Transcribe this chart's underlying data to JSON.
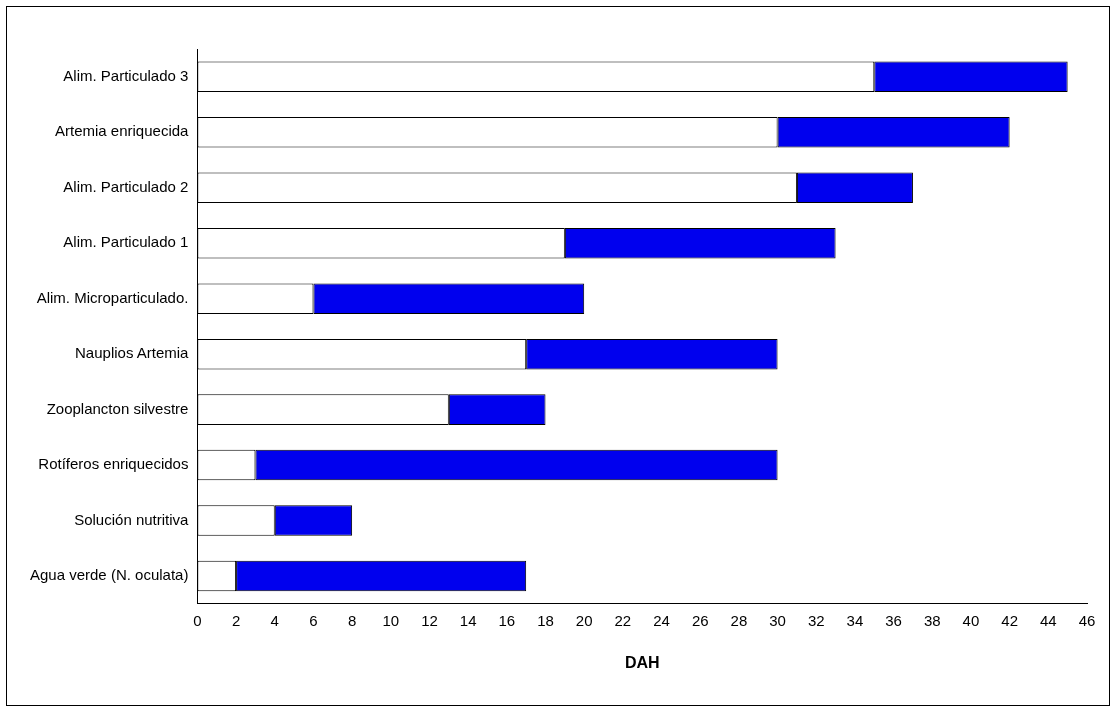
{
  "chart_data": {
    "type": "bar",
    "orientation": "horizontal",
    "stacked": true,
    "xlabel": "DAH",
    "categories": [
      "Alim. Particulado 3",
      "Artemia enriquecida",
      "Alim. Particulado 2",
      "Alim. Particulado 1",
      "Alim. Microparticulado.",
      "Nauplios Artemia",
      "Zooplancton silvestre",
      "Rotíferos enriquecidos",
      "Solución nutritiva",
      "Agua verde (N. oculata)"
    ],
    "series": [
      {
        "color": "#ffffff",
        "values": [
          35,
          30,
          31,
          19,
          6,
          17,
          13,
          3,
          4,
          2
        ]
      },
      {
        "color": "#0000ee",
        "values": [
          10,
          12,
          6,
          14,
          14,
          13,
          5,
          27,
          4,
          15
        ]
      }
    ],
    "xlim": [
      0,
      46
    ],
    "xticks": [
      0,
      2,
      4,
      6,
      8,
      10,
      12,
      14,
      16,
      18,
      20,
      22,
      24,
      26,
      28,
      30,
      32,
      34,
      36,
      38,
      40,
      42,
      44,
      46
    ],
    "grid": false,
    "legend": false
  }
}
